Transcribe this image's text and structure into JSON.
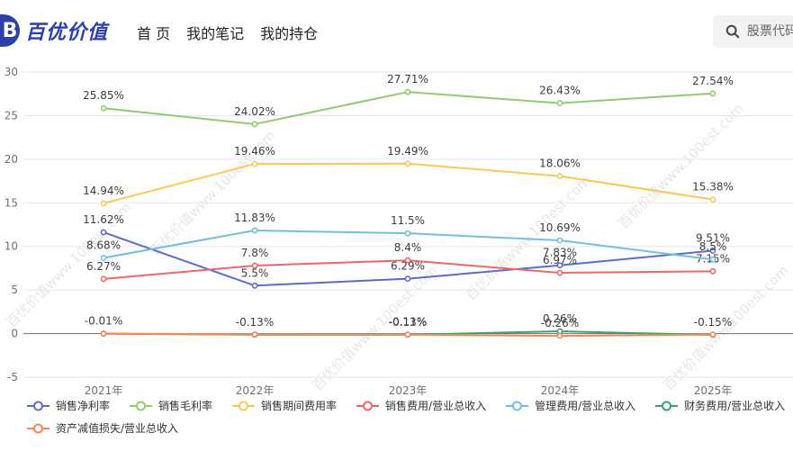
{
  "header": {
    "logo_glyph": "B",
    "logo_text": "百优价值",
    "nav": [
      "首 页",
      "我的笔记",
      "我的持仓"
    ],
    "search_placeholder": "股票代码"
  },
  "watermark_text": "百优价值www.100est.com",
  "chart_data": {
    "type": "line",
    "categories": [
      "2021年",
      "2022年",
      "2023年",
      "2024年",
      "2025年"
    ],
    "ylim": [
      -5,
      30
    ],
    "yticks": [
      -5,
      0,
      5,
      10,
      15,
      20,
      25,
      30
    ],
    "grid": true,
    "legend_position": "bottom",
    "series": [
      {
        "name": "销售净利率",
        "color": "#5b6dc8",
        "values": [
          11.62,
          5.5,
          6.29,
          7.83,
          9.51
        ],
        "labels": [
          "11.62%",
          "5.5%",
          "6.29%",
          "7.83%",
          "9.51%"
        ]
      },
      {
        "name": "销售毛利率",
        "color": "#91cc75",
        "values": [
          25.85,
          24.02,
          27.71,
          26.43,
          27.54
        ],
        "labels": [
          "25.85%",
          "24.02%",
          "27.71%",
          "26.43%",
          "27.54%"
        ]
      },
      {
        "name": "销售期间费用率",
        "color": "#fac858",
        "values": [
          14.94,
          19.46,
          19.49,
          18.06,
          15.38
        ],
        "labels": [
          "14.94%",
          "19.46%",
          "19.49%",
          "18.06%",
          "15.38%"
        ]
      },
      {
        "name": "销售费用/营业总收入",
        "color": "#ee6666",
        "values": [
          6.27,
          7.8,
          8.4,
          6.97,
          7.15
        ],
        "labels": [
          "6.27%",
          "7.8%",
          "8.4%",
          "6.97%",
          "7.15%"
        ]
      },
      {
        "name": "管理费用/营业总收入",
        "color": "#73c0de",
        "values": [
          8.68,
          11.83,
          11.5,
          10.69,
          8.5
        ],
        "labels": [
          "8.68%",
          "11.83%",
          "11.5%",
          "10.69%",
          "8.5%"
        ]
      },
      {
        "name": "财务费用/营业总收入",
        "color": "#3ba272",
        "values": [
          -0.01,
          -0.13,
          -0.13,
          0.26,
          -0.15
        ],
        "labels": [
          "-0.01%",
          "-0.13%",
          "-0.13%",
          "0.26%",
          "-0.15%"
        ]
      },
      {
        "name": "资产减值损失/营业总收入",
        "color": "#fc8452",
        "values": [
          0.0,
          -0.1,
          -0.11,
          -0.26,
          -0.1
        ],
        "labels": [
          "",
          "",
          "-0.11%",
          "-0.26%",
          ""
        ]
      }
    ]
  }
}
